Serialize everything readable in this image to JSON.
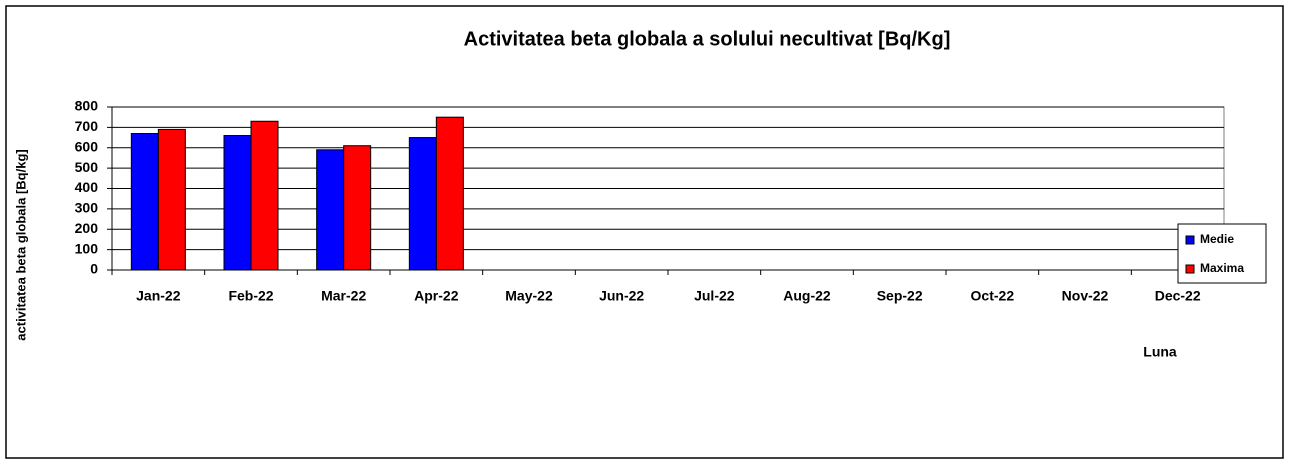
{
  "chart_data": {
    "type": "bar",
    "title": "Activitatea beta globala a solului necultivat [Bq/Kg]",
    "x_label": "Luna",
    "y_label": "activitatea beta globala [Bq/kg]",
    "categories": [
      "Jan-22",
      "Feb-22",
      "Mar-22",
      "Apr-22",
      "May-22",
      "Jun-22",
      "Jul-22",
      "Aug-22",
      "Sep-22",
      "Oct-22",
      "Nov-22",
      "Dec-22"
    ],
    "series": [
      {
        "name": "Medie",
        "color": "#0000ff",
        "values": [
          670,
          660,
          590,
          650,
          null,
          null,
          null,
          null,
          null,
          null,
          null,
          null
        ]
      },
      {
        "name": "Maxima",
        "color": "#ff0000",
        "values": [
          690,
          730,
          610,
          750,
          null,
          null,
          null,
          null,
          null,
          null,
          null,
          null
        ]
      }
    ],
    "ylim": [
      0,
      800
    ],
    "yticks": [
      0,
      100,
      200,
      300,
      400,
      500,
      600,
      700,
      800
    ],
    "grid": true,
    "legend": "right"
  }
}
